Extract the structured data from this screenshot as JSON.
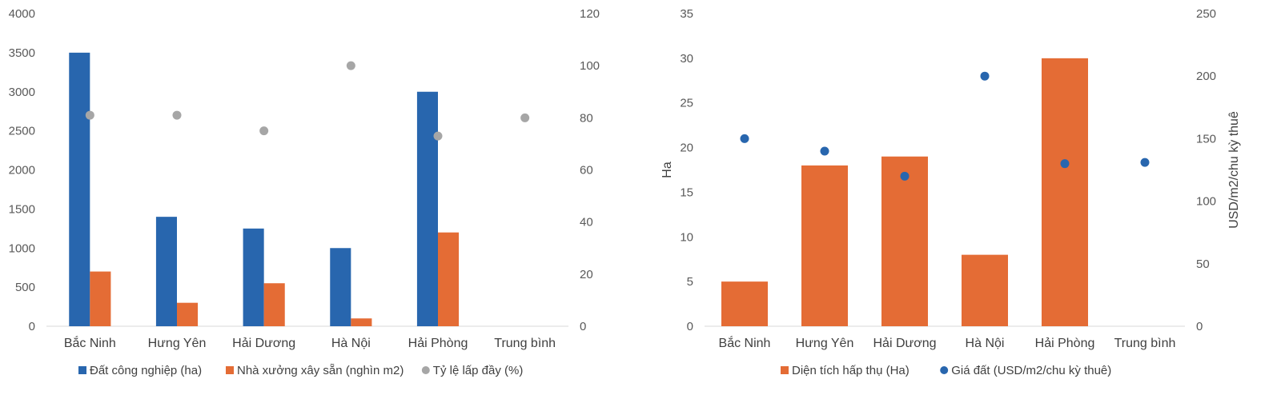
{
  "chart_data": [
    {
      "type": "bar",
      "categories": [
        "Bắc Ninh",
        "Hưng Yên",
        "Hải Dương",
        "Hà Nội",
        "Hải Phòng",
        "Trung bình"
      ],
      "series": [
        {
          "name": "Đất công nghiệp (ha)",
          "type": "bar",
          "axis": "left",
          "color": "#2866AE",
          "values": [
            3500,
            1400,
            1250,
            1000,
            3000,
            null
          ]
        },
        {
          "name": "Nhà xưởng xây sẵn (nghìn m2)",
          "type": "bar",
          "axis": "left",
          "color": "#E46C35",
          "values": [
            700,
            300,
            550,
            100,
            1200,
            null
          ]
        },
        {
          "name": "Tỷ lệ lấp đầy (%)",
          "type": "scatter",
          "axis": "right",
          "color": "#A6A6A6",
          "values": [
            81,
            81,
            75,
            100,
            73,
            80
          ]
        }
      ],
      "yleft": {
        "min": 0,
        "max": 4000,
        "ticks": [
          "0",
          "500",
          "1000",
          "1500",
          "2000",
          "2500",
          "3000",
          "3500",
          "4000"
        ]
      },
      "yright": {
        "min": 0,
        "max": 120,
        "ticks": [
          "0",
          "20",
          "40",
          "60",
          "80",
          "100",
          "120"
        ]
      },
      "legend_position": "bottom"
    },
    {
      "type": "bar",
      "categories": [
        "Bắc Ninh",
        "Hưng Yên",
        "Hải Dương",
        "Hà Nội",
        "Hải Phòng",
        "Trung bình"
      ],
      "series": [
        {
          "name": "Diện tích hấp thụ (Ha)",
          "type": "bar",
          "axis": "left",
          "color": "#E46C35",
          "values": [
            5,
            18,
            19,
            8,
            30,
            null
          ]
        },
        {
          "name": "Giá đất (USD/m2/chu kỳ thuê)",
          "type": "scatter",
          "axis": "right",
          "color": "#2866AE",
          "values": [
            150,
            140,
            120,
            200,
            130,
            131
          ]
        }
      ],
      "yleft": {
        "min": 0,
        "max": 35,
        "label": "Ha",
        "ticks": [
          "0",
          "5",
          "10",
          "15",
          "20",
          "25",
          "30",
          "35"
        ]
      },
      "yright": {
        "min": 0,
        "max": 250,
        "label": "USD/m2/chu kỳ thuê",
        "ticks": [
          "0",
          "50",
          "100",
          "150",
          "200",
          "250"
        ]
      },
      "legend_position": "bottom"
    }
  ]
}
